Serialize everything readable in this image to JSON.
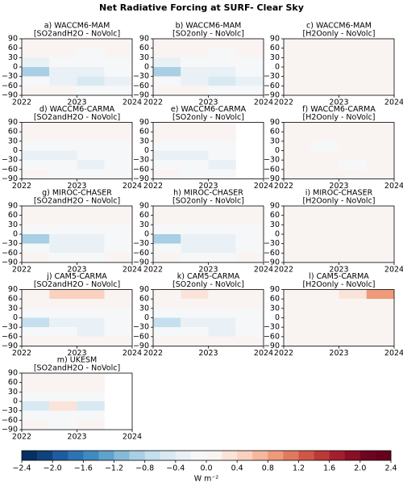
{
  "title": "Net Radiative Forcing at SURF- Clear Sky",
  "chart_data": [
    {
      "type": "heatmap",
      "title": "a) WACCM6-MAM",
      "subtitle": "[SO2andH2O - NoVolc]",
      "x": [
        2022,
        2022.5,
        2023,
        2023.5,
        2024
      ],
      "y": [
        90,
        60,
        30,
        0,
        -30,
        -60,
        -90
      ],
      "z": [
        [
          0,
          0,
          0,
          0
        ],
        [
          0,
          0,
          -0.1,
          0
        ],
        [
          -0.3,
          -0.2,
          -0.2,
          -0.1
        ],
        [
          -1.0,
          -0.4,
          -0.4,
          -0.2
        ],
        [
          -0.2,
          -0.3,
          -0.5,
          -0.3
        ],
        [
          0,
          0,
          -0.1,
          -0.1
        ]
      ],
      "xlim": [
        2022,
        2024
      ],
      "xticks": [
        2022,
        2023,
        2024
      ],
      "ylim": [
        -90,
        90
      ],
      "yticks": [
        {
          "value": -90,
          "label": "−90"
        },
        {
          "value": -60,
          "label": "−60"
        },
        {
          "value": -30,
          "label": "−30"
        },
        0,
        30,
        60,
        90
      ]
    },
    {
      "type": "heatmap",
      "title": "b) WACCM6-MAM",
      "subtitle": "[SO2only - NoVolc]",
      "x": [
        2022,
        2022.5,
        2023,
        2023.5,
        2024
      ],
      "y": [
        90,
        60,
        30,
        0,
        -30,
        -60,
        -90
      ],
      "z": [
        [
          0,
          0,
          0,
          0
        ],
        [
          0,
          0,
          -0.1,
          0
        ],
        [
          -0.3,
          -0.2,
          -0.2,
          -0.1
        ],
        [
          -1.0,
          -0.4,
          -0.4,
          -0.2
        ],
        [
          -0.2,
          -0.3,
          -0.5,
          -0.3
        ],
        [
          0,
          0,
          -0.1,
          -0.1
        ]
      ],
      "xlim": [
        2022,
        2024
      ],
      "xticks": [
        2022,
        2023,
        2024
      ],
      "ylim": [
        -90,
        90
      ],
      "yticks": [
        {
          "value": -90,
          "label": "−90"
        },
        {
          "value": -60,
          "label": "−60"
        },
        {
          "value": -30,
          "label": "−30"
        },
        0,
        30,
        60,
        90
      ]
    },
    {
      "type": "heatmap",
      "title": "c) WACCM6-MAM",
      "subtitle": "[H2Oonly - NoVolc]",
      "x": [
        2022,
        2022.5,
        2023,
        2023.5,
        2024
      ],
      "y": [
        90,
        60,
        30,
        0,
        -30,
        -60,
        -90
      ],
      "z": [
        [
          0,
          0.1,
          0,
          0
        ],
        [
          0,
          0,
          0.1,
          0
        ],
        [
          0,
          0,
          0,
          0
        ],
        [
          0.1,
          0,
          0,
          0.1
        ],
        [
          0,
          0,
          0,
          0
        ],
        [
          0,
          0.1,
          0,
          0
        ]
      ],
      "xlim": [
        2022,
        2024
      ],
      "xticks": [
        2022,
        2023,
        2024
      ],
      "ylim": [
        -90,
        90
      ],
      "yticks": [
        {
          "value": -90,
          "label": "−90"
        },
        {
          "value": -60,
          "label": "−60"
        },
        {
          "value": -30,
          "label": "−30"
        },
        0,
        30,
        60,
        90
      ]
    },
    {
      "type": "heatmap",
      "title": "d) WACCM6-CARMA",
      "subtitle": "[SO2andH2O - NoVolc]",
      "x": [
        2022,
        2022.5,
        2023,
        2023.5,
        2024
      ],
      "y": [
        90,
        60,
        30,
        0,
        -30,
        -60,
        -90
      ],
      "z": [
        [
          0,
          0,
          0,
          0
        ],
        [
          0,
          0,
          0,
          0
        ],
        [
          -0.2,
          -0.2,
          -0.1,
          -0.1
        ],
        [
          -0.4,
          -0.3,
          -0.2,
          -0.2
        ],
        [
          -0.1,
          -0.2,
          -0.3,
          -0.2
        ],
        [
          0,
          -0.1,
          -0.1,
          -0.1
        ]
      ],
      "xlim": [
        2022,
        2024
      ],
      "xticks": [
        2022,
        2023,
        2024
      ],
      "ylim": [
        -90,
        90
      ],
      "yticks": [
        {
          "value": -90,
          "label": "−90"
        },
        {
          "value": -60,
          "label": "−60"
        },
        {
          "value": -30,
          "label": "−30"
        },
        0,
        30,
        60,
        90
      ]
    },
    {
      "type": "heatmap",
      "title": "e) WACCM6-CARMA",
      "subtitle": "[SO2only - NoVolc]",
      "x": [
        2022,
        2022.5,
        2023,
        2023.5,
        2024
      ],
      "y": [
        90,
        60,
        30,
        0,
        -30,
        -60,
        -90
      ],
      "z": [
        [
          0,
          0,
          0,
          null
        ],
        [
          0,
          0,
          0,
          null
        ],
        [
          -0.2,
          -0.2,
          -0.1,
          null
        ],
        [
          -0.4,
          -0.3,
          -0.2,
          null
        ],
        [
          -0.1,
          -0.2,
          -0.3,
          null
        ],
        [
          0,
          -0.1,
          -0.1,
          null
        ]
      ],
      "xlim": [
        2022,
        2024
      ],
      "xticks": [
        2022,
        2023,
        2024
      ],
      "ylim": [
        -90,
        90
      ],
      "yticks": [
        {
          "value": -90,
          "label": "−90"
        },
        {
          "value": -60,
          "label": "−60"
        },
        {
          "value": -30,
          "label": "−30"
        },
        0,
        30,
        60,
        90
      ]
    },
    {
      "type": "heatmap",
      "title": "f) WACCM6-CARMA",
      "subtitle": "[H2Oonly - NoVolc]",
      "x": [
        2022,
        2022.5,
        2023,
        2023.5,
        2024
      ],
      "y": [
        90,
        60,
        30,
        0,
        -30,
        -60,
        -90
      ],
      "z": [
        [
          0,
          0,
          0,
          0
        ],
        [
          0,
          0,
          0,
          0
        ],
        [
          0,
          -0.1,
          0,
          0
        ],
        [
          0,
          0,
          0,
          0
        ],
        [
          0,
          0,
          -0.1,
          0
        ],
        [
          0,
          0,
          0,
          0
        ]
      ],
      "xlim": [
        2022,
        2024
      ],
      "xticks": [
        2022,
        2023,
        2024
      ],
      "ylim": [
        -90,
        90
      ],
      "yticks": [
        {
          "value": -90,
          "label": "−90"
        },
        {
          "value": -60,
          "label": "−60"
        },
        {
          "value": -30,
          "label": "−30"
        },
        0,
        30,
        60,
        90
      ]
    },
    {
      "type": "heatmap",
      "title": "g) MIROC-CHASER",
      "subtitle": "[SO2andH2O - NoVolc]",
      "x": [
        2022,
        2022.5,
        2023,
        2023.5,
        2024
      ],
      "y": [
        90,
        60,
        30,
        0,
        -30,
        -60,
        -90
      ],
      "z": [
        [
          0,
          0,
          0,
          0
        ],
        [
          0,
          0,
          0,
          0
        ],
        [
          -0.2,
          -0.2,
          -0.2,
          -0.1
        ],
        [
          -1.0,
          -0.4,
          -0.3,
          -0.2
        ],
        [
          -0.2,
          -0.3,
          -0.3,
          -0.2
        ],
        [
          0,
          -0.1,
          -0.1,
          0
        ]
      ],
      "xlim": [
        2022,
        2024
      ],
      "xticks": [
        2022,
        2023,
        2024
      ],
      "ylim": [
        -90,
        90
      ],
      "yticks": [
        {
          "value": -90,
          "label": "−90"
        },
        {
          "value": -60,
          "label": "−60"
        },
        {
          "value": -30,
          "label": "−30"
        },
        0,
        30,
        60,
        90
      ]
    },
    {
      "type": "heatmap",
      "title": "h) MIROC-CHASER",
      "subtitle": "[SO2only - NoVolc]",
      "x": [
        2022,
        2022.5,
        2023,
        2023.5,
        2024
      ],
      "y": [
        90,
        60,
        30,
        0,
        -30,
        -60,
        -90
      ],
      "z": [
        [
          0,
          0,
          0,
          0
        ],
        [
          0,
          0,
          0,
          0
        ],
        [
          -0.2,
          -0.2,
          -0.2,
          -0.1
        ],
        [
          -1.0,
          -0.4,
          -0.3,
          -0.2
        ],
        [
          -0.2,
          -0.3,
          -0.3,
          -0.2
        ],
        [
          0,
          -0.1,
          -0.1,
          0
        ]
      ],
      "xlim": [
        2022,
        2024
      ],
      "xticks": [
        2022,
        2023,
        2024
      ],
      "ylim": [
        -90,
        90
      ],
      "yticks": [
        {
          "value": -90,
          "label": "−90"
        },
        {
          "value": -60,
          "label": "−60"
        },
        {
          "value": -30,
          "label": "−30"
        },
        0,
        30,
        60,
        90
      ]
    },
    {
      "type": "heatmap",
      "title": "i) MIROC-CHASER",
      "subtitle": "[H2Oonly - NoVolc]",
      "x": [
        2022,
        2022.5,
        2023,
        2023.5,
        2024
      ],
      "y": [
        90,
        60,
        30,
        0,
        -30,
        -60,
        -90
      ],
      "z": [
        [
          0,
          0,
          0,
          0
        ],
        [
          0,
          0,
          0,
          0
        ],
        [
          0,
          0,
          0,
          0
        ],
        [
          0,
          0,
          0,
          0
        ],
        [
          0,
          0,
          0,
          0
        ],
        [
          0,
          0,
          0,
          0
        ]
      ],
      "xlim": [
        2022,
        2024
      ],
      "xticks": [
        2022,
        2023,
        2024
      ],
      "ylim": [
        -90,
        90
      ],
      "yticks": [
        {
          "value": -90,
          "label": "−90"
        },
        {
          "value": -60,
          "label": "−60"
        },
        {
          "value": -30,
          "label": "−30"
        },
        0,
        30,
        60,
        90
      ]
    },
    {
      "type": "heatmap",
      "title": "j) CAM5-CARMA",
      "subtitle": "[SO2andH2O - NoVolc]",
      "x": [
        2022,
        2022.5,
        2023,
        2023.5,
        2024
      ],
      "y": [
        90,
        60,
        30,
        0,
        -30,
        -60,
        -90
      ],
      "z": [
        [
          0.1,
          0.4,
          0.4,
          0.1
        ],
        [
          0,
          0.1,
          0,
          0.1
        ],
        [
          -0.2,
          -0.2,
          -0.1,
          -0.1
        ],
        [
          -0.8,
          -0.4,
          -0.3,
          -0.2
        ],
        [
          -0.1,
          -0.2,
          -0.3,
          -0.1
        ],
        [
          0,
          0.1,
          0,
          0.1
        ]
      ],
      "xlim": [
        2022,
        2024
      ],
      "xticks": [
        2022,
        2023,
        2024
      ],
      "ylim": [
        -90,
        90
      ],
      "yticks": [
        {
          "value": -90,
          "label": "−90"
        },
        {
          "value": -60,
          "label": "−60"
        },
        {
          "value": -30,
          "label": "−30"
        },
        0,
        30,
        60,
        90
      ]
    },
    {
      "type": "heatmap",
      "title": "k) CAM5-CARMA",
      "subtitle": "[SO2only - NoVolc]",
      "x": [
        2022,
        2022.5,
        2023,
        2023.5,
        2024
      ],
      "y": [
        90,
        60,
        30,
        0,
        -30,
        -60,
        -90
      ],
      "z": [
        [
          0.1,
          0.2,
          0.1,
          0.1
        ],
        [
          0,
          0.1,
          0,
          0
        ],
        [
          -0.2,
          -0.2,
          -0.1,
          -0.1
        ],
        [
          -0.8,
          -0.4,
          -0.3,
          -0.2
        ],
        [
          -0.1,
          -0.2,
          -0.3,
          -0.1
        ],
        [
          0,
          0,
          0,
          0
        ]
      ],
      "xlim": [
        2022,
        2024
      ],
      "xticks": [
        2022,
        2023,
        2024
      ],
      "ylim": [
        -90,
        90
      ],
      "yticks": [
        {
          "value": -90,
          "label": "−90"
        },
        {
          "value": -60,
          "label": "−60"
        },
        {
          "value": -30,
          "label": "−30"
        },
        0,
        30,
        60,
        90
      ]
    },
    {
      "type": "heatmap",
      "title": "l) CAM5-CARMA",
      "subtitle": "[H2Oonly - NoVolc]",
      "x": [
        2022,
        2022.5,
        2023,
        2023.5,
        2024
      ],
      "y": [
        90,
        60,
        30,
        0,
        -30,
        -60,
        -90
      ],
      "z": [
        [
          0.1,
          0.1,
          0.2,
          0.8
        ],
        [
          0,
          0.1,
          0,
          0.1
        ],
        [
          0,
          0,
          0,
          0
        ],
        [
          0,
          0,
          0,
          0
        ],
        [
          0,
          0,
          0,
          0
        ],
        [
          0.1,
          0,
          0.1,
          0
        ]
      ],
      "xlim": [
        2022,
        2024
      ],
      "xticks": [
        2022,
        2023,
        2024
      ],
      "ylim": [
        -90,
        90
      ],
      "yticks": [
        {
          "value": -90,
          "label": "−90"
        },
        {
          "value": -60,
          "label": "−60"
        },
        {
          "value": -30,
          "label": "−30"
        },
        0,
        30,
        60,
        90
      ]
    },
    {
      "type": "heatmap",
      "title": "m) UKESM",
      "subtitle": "[SO2andH2O - NoVolc]",
      "x": [
        2022,
        2022.5,
        2023,
        2023.5,
        2024
      ],
      "y": [
        90,
        60,
        30,
        0,
        -30,
        -60,
        -90
      ],
      "z": [
        [
          0,
          0,
          0,
          null
        ],
        [
          0,
          0,
          0,
          null
        ],
        [
          -0.2,
          -0.1,
          -0.2,
          null
        ],
        [
          -0.6,
          0.3,
          -0.5,
          null
        ],
        [
          -0.2,
          -0.2,
          -0.1,
          null
        ],
        [
          0,
          -0.1,
          0,
          null
        ]
      ],
      "xlim": [
        2022,
        2024
      ],
      "xticks": [
        2022,
        2023,
        2024
      ],
      "ylim": [
        -90,
        90
      ],
      "yticks": [
        {
          "value": -90,
          "label": "−90"
        },
        {
          "value": -60,
          "label": "−60"
        },
        {
          "value": -30,
          "label": "−30"
        },
        0,
        30,
        60,
        90
      ]
    },
    {
      "type": "colorbar",
      "label": "W m⁻²",
      "lim": [
        -2.4,
        2.4
      ],
      "colors": [
        "#053061",
        "#0f437b",
        "#1f5b9f",
        "#2e73b3",
        "#3f8ac0",
        "#5fa2cb",
        "#86bbd8",
        "#a8cfe4",
        "#c4dfed",
        "#d8e9f2",
        "#e9f1f6",
        "#f6f7f8",
        "#f9f4f2",
        "#fae4da",
        "#f9d1be",
        "#f5b79d",
        "#ee9a7b",
        "#e07a5f",
        "#cf5647",
        "#bb3a38",
        "#a31f2d",
        "#8a0e26",
        "#6f0621",
        "#67001f"
      ],
      "ticks": [
        {
          "value": -2.4,
          "label": "−2.4"
        },
        {
          "value": -2.0,
          "label": "−2.0"
        },
        {
          "value": -1.6,
          "label": "−1.6"
        },
        {
          "value": -1.2,
          "label": "−1.2"
        },
        {
          "value": -0.8,
          "label": "−0.8"
        },
        {
          "value": -0.4,
          "label": "−0.4"
        },
        {
          "value": 0,
          "label": "0.0"
        },
        0.4,
        0.8,
        1.2,
        1.6,
        {
          "value": 2.0,
          "label": "2.0"
        },
        2.4
      ]
    }
  ]
}
